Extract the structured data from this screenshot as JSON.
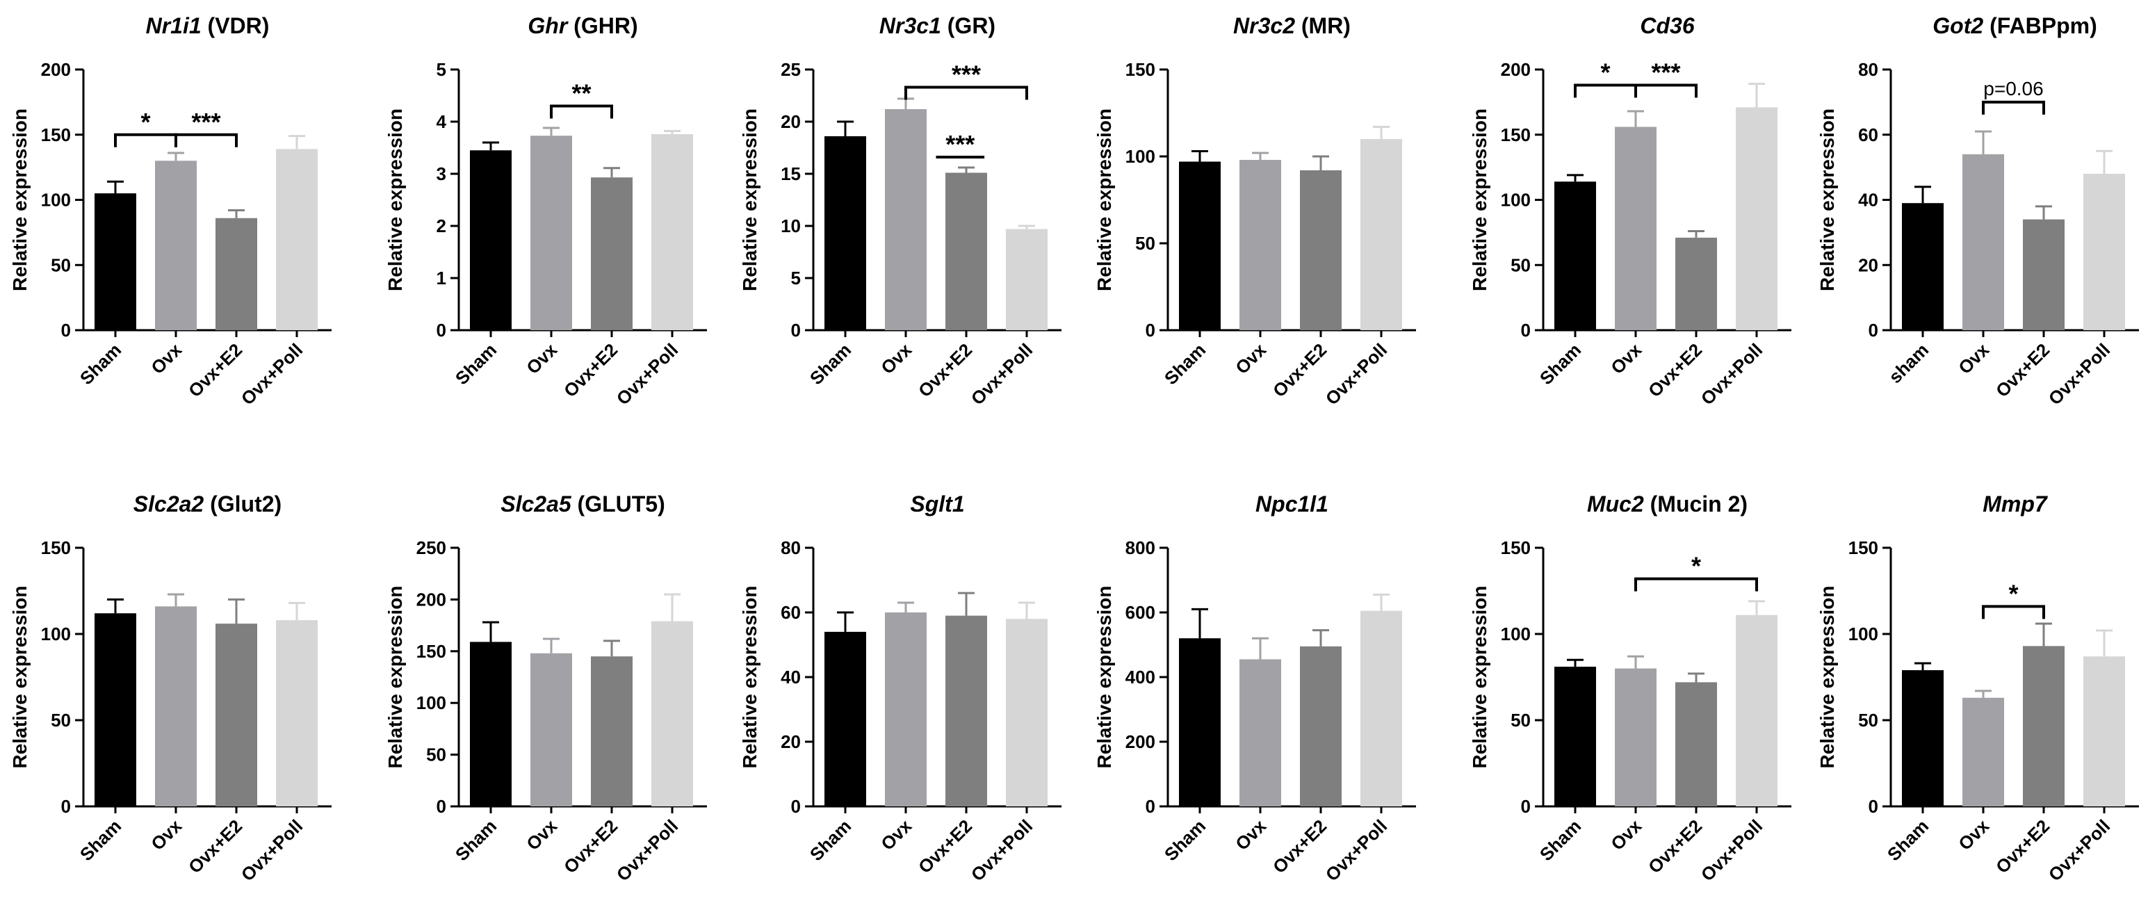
{
  "figure": "Relative expression panels",
  "group_colors": {
    "Sham": "#000000",
    "sham": "#000000",
    "Ovx": "#a2a2a6",
    "Ovx+E2": "#7f7f7f",
    "Ovx+Poll": "#d6d6d6"
  },
  "chart_data": [
    {
      "type": "bar",
      "title_italic": "Nr1i1",
      "title_rest": " (VDR)",
      "ylabel": "Relative expression",
      "categories": [
        "Sham",
        "Ovx",
        "Ovx+E2",
        "Ovx+Poll"
      ],
      "values": [
        105,
        130,
        86,
        139
      ],
      "errors": [
        9,
        6,
        6,
        10
      ],
      "ylim": [
        0,
        200
      ],
      "yticks": [
        0,
        50,
        100,
        150,
        200
      ],
      "annotations": [
        {
          "from": 0,
          "to": 1,
          "label": "*",
          "y": 150
        },
        {
          "from": 1,
          "to": 2,
          "label": "***",
          "y": 150
        }
      ]
    },
    {
      "type": "bar",
      "title_italic": "Ghr",
      "title_rest": " (GHR)",
      "ylabel": "Relative expression",
      "categories": [
        "Sham",
        "Ovx",
        "Ovx+E2",
        "Ovx+Poll"
      ],
      "values": [
        3.45,
        3.73,
        2.93,
        3.76
      ],
      "errors": [
        0.15,
        0.15,
        0.18,
        0.06
      ],
      "ylim": [
        0,
        5
      ],
      "yticks": [
        0,
        1,
        2,
        3,
        4,
        5
      ],
      "annotations": [
        {
          "from": 1,
          "to": 2,
          "label": "**",
          "y": 4.3
        }
      ]
    },
    {
      "type": "bar",
      "title_italic": "Nr3c1",
      "title_rest": " (GR)",
      "ylabel": "Relative expression",
      "categories": [
        "Sham",
        "Ovx",
        "Ovx+E2",
        "Ovx+Poll"
      ],
      "values": [
        18.6,
        21.2,
        15.1,
        9.7
      ],
      "errors": [
        1.4,
        1.0,
        0.5,
        0.3
      ],
      "ylim": [
        0,
        25
      ],
      "yticks": [
        0,
        5,
        10,
        15,
        20,
        25
      ],
      "annotations": [
        {
          "from": 1,
          "to": 3,
          "label": "***",
          "y": 23.3
        },
        {
          "from": 1.5,
          "to": 2.3,
          "label": "***",
          "y": 16.6,
          "flat": true
        }
      ]
    },
    {
      "type": "bar",
      "title_italic": "Nr3c2",
      "title_rest": " (MR)",
      "ylabel": "Relative expression",
      "categories": [
        "Sham",
        "Ovx",
        "Ovx+E2",
        "Ovx+Poll"
      ],
      "values": [
        97,
        98,
        92,
        110
      ],
      "errors": [
        6,
        4,
        8,
        7
      ],
      "ylim": [
        0,
        150
      ],
      "yticks": [
        0,
        50,
        100,
        150
      ],
      "annotations": []
    },
    {
      "type": "bar",
      "title_italic": "Cd36",
      "title_rest": "",
      "ylabel": "Relative expression",
      "categories": [
        "Sham",
        "Ovx",
        "Ovx+E2",
        "Ovx+Poll"
      ],
      "values": [
        114,
        156,
        71,
        171
      ],
      "errors": [
        5,
        12,
        5,
        18
      ],
      "ylim": [
        0,
        200
      ],
      "yticks": [
        0,
        50,
        100,
        150,
        200
      ],
      "annotations": [
        {
          "from": 0,
          "to": 1,
          "label": "*",
          "y": 188
        },
        {
          "from": 1,
          "to": 2,
          "label": "***",
          "y": 188
        }
      ]
    },
    {
      "type": "bar",
      "title_italic": "Got2",
      "title_rest": " (FABPpm)",
      "ylabel": "Relative expression",
      "categories": [
        "sham",
        "Ovx",
        "Ovx+E2",
        "Ovx+Poll"
      ],
      "values": [
        39,
        54,
        34,
        48
      ],
      "errors": [
        5,
        7,
        4,
        7
      ],
      "ylim": [
        0,
        80
      ],
      "yticks": [
        0,
        20,
        40,
        60,
        80
      ],
      "annotations": [
        {
          "from": 1,
          "to": 2,
          "label": "p=0.06",
          "y": 70,
          "small": true
        }
      ]
    },
    {
      "type": "bar",
      "title_italic": "Slc2a2",
      "title_rest": " (Glut2)",
      "ylabel": "Relative expression",
      "categories": [
        "Sham",
        "Ovx",
        "Ovx+E2",
        "Ovx+Poll"
      ],
      "values": [
        112,
        116,
        106,
        108
      ],
      "errors": [
        8,
        7,
        14,
        10
      ],
      "ylim": [
        0,
        150
      ],
      "yticks": [
        0,
        50,
        100,
        150
      ],
      "annotations": []
    },
    {
      "type": "bar",
      "title_italic": "Slc2a5",
      "title_rest": " (GLUT5)",
      "ylabel": "Relative expression",
      "categories": [
        "Sham",
        "Ovx",
        "Ovx+E2",
        "Ovx+Poll"
      ],
      "values": [
        159,
        148,
        145,
        179
      ],
      "errors": [
        19,
        14,
        15,
        26
      ],
      "ylim": [
        0,
        250
      ],
      "yticks": [
        0,
        50,
        100,
        150,
        200,
        250
      ],
      "annotations": []
    },
    {
      "type": "bar",
      "title_italic": "Sglt1",
      "title_rest": "",
      "ylabel": "Relative expression",
      "categories": [
        "Sham",
        "Ovx",
        "Ovx+E2",
        "Ovx+Poll"
      ],
      "values": [
        54,
        60,
        59,
        58
      ],
      "errors": [
        6,
        3,
        7,
        5
      ],
      "ylim": [
        0,
        80
      ],
      "yticks": [
        0,
        20,
        40,
        60,
        80
      ],
      "annotations": []
    },
    {
      "type": "bar",
      "title_italic": "Npc1l1",
      "title_rest": "",
      "ylabel": "Relative expression",
      "categories": [
        "Sham",
        "Ovx",
        "Ovx+E2",
        "Ovx+Poll"
      ],
      "values": [
        520,
        455,
        495,
        605
      ],
      "errors": [
        90,
        65,
        50,
        50
      ],
      "ylim": [
        0,
        800
      ],
      "yticks": [
        0,
        200,
        400,
        600,
        800
      ],
      "annotations": []
    },
    {
      "type": "bar",
      "title_italic": "Muc2",
      "title_rest": " (Mucin 2)",
      "ylabel": "Relative expression",
      "categories": [
        "Sham",
        "Ovx",
        "Ovx+E2",
        "Ovx+Poll"
      ],
      "values": [
        81,
        80,
        72,
        111
      ],
      "errors": [
        4,
        7,
        5,
        8
      ],
      "ylim": [
        0,
        150
      ],
      "yticks": [
        0,
        50,
        100,
        150
      ],
      "annotations": [
        {
          "from": 1,
          "to": 3,
          "label": "*",
          "y": 132
        }
      ]
    },
    {
      "type": "bar",
      "title_italic": "Mmp7",
      "title_rest": "",
      "ylabel": "Relative expression",
      "categories": [
        "Sham",
        "Ovx",
        "Ovx+E2",
        "Ovx+Poll"
      ],
      "values": [
        79,
        63,
        93,
        87
      ],
      "errors": [
        4,
        4,
        13,
        15
      ],
      "ylim": [
        0,
        150
      ],
      "yticks": [
        0,
        50,
        100,
        150
      ],
      "annotations": [
        {
          "from": 1,
          "to": 2,
          "label": "*",
          "y": 116
        }
      ]
    }
  ]
}
